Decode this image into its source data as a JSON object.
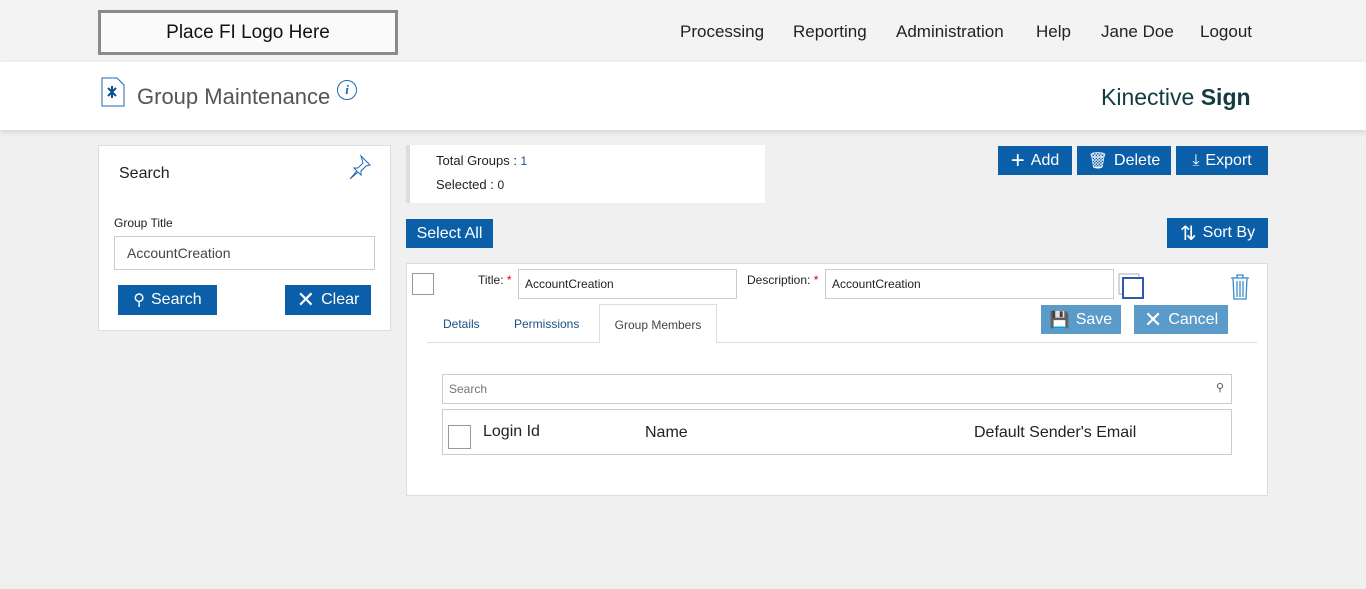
{
  "logo": "Place FI Logo Here",
  "nav": [
    "Processing",
    "Reporting",
    "Administration",
    "Help",
    "Jane Doe",
    "Logout"
  ],
  "page": {
    "title": "Group Maintenance",
    "brand_light": "Kinective ",
    "brand_bold": "Sign"
  },
  "search_panel": {
    "heading": "Search",
    "field_label": "Group Title",
    "field_value": "AccountCreation",
    "search_label": "Search",
    "clear_label": "Clear"
  },
  "summary": {
    "total_label": "Total Groups : ",
    "total": "1",
    "selected_label": "Selected : ",
    "selected": "0"
  },
  "toolbar": {
    "add": "Add",
    "delete": "Delete",
    "export": "Export",
    "select_all": "Select All",
    "sort_by": "Sort By"
  },
  "group": {
    "title_label": "Title:",
    "title_value": "AccountCreation",
    "desc_label": "Description:",
    "desc_value": "AccountCreation",
    "required": "*",
    "tabs": [
      "Details",
      "Permissions",
      "Group Members"
    ],
    "active_tab": "Group Members",
    "save": "Save",
    "cancel": "Cancel",
    "member_search_placeholder": "Search",
    "columns": [
      "Login Id",
      "Name",
      "Default Sender's Email"
    ]
  },
  "colors": {
    "primary": "#0b5ea8",
    "disabled": "#5b9bc9"
  }
}
